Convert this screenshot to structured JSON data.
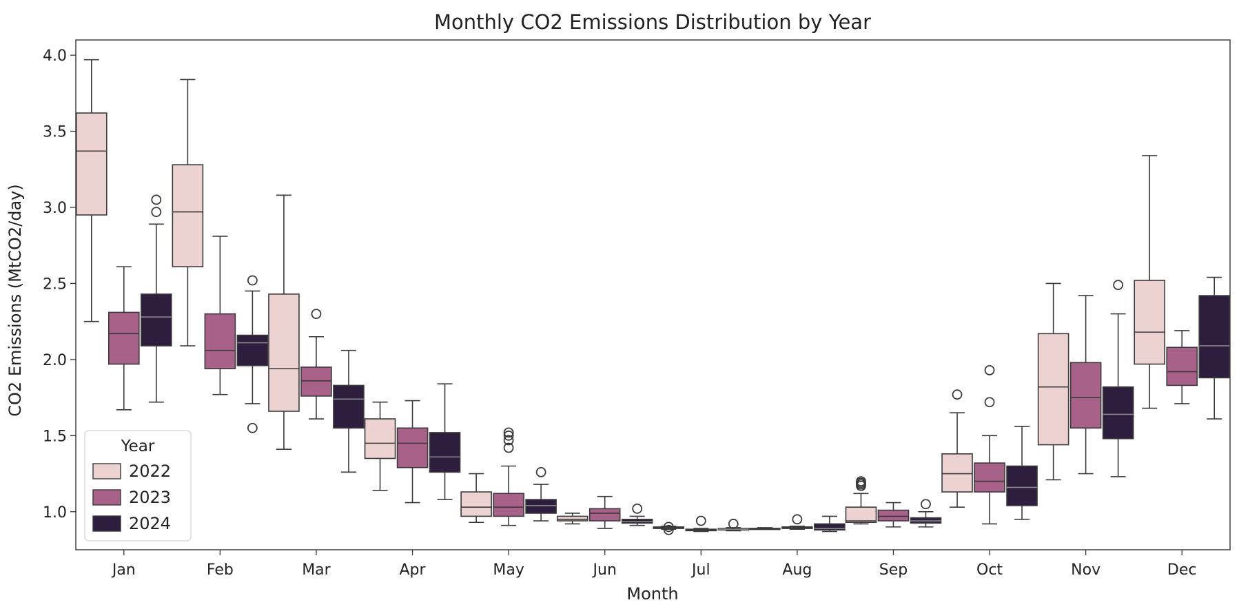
{
  "chart_data": {
    "type": "box",
    "title": "Monthly CO2 Emissions Distribution by Year",
    "xlabel": "Month",
    "ylabel": "CO2 Emissions (MtCO2/day)",
    "ylim": [
      0.75,
      4.1
    ],
    "yticks": [
      1.0,
      1.5,
      2.0,
      2.5,
      3.0,
      3.5,
      4.0
    ],
    "ytick_labels": [
      "1.0",
      "1.5",
      "2.0",
      "2.5",
      "3.0",
      "3.5",
      "4.0"
    ],
    "categories": [
      "Jan",
      "Feb",
      "Mar",
      "Apr",
      "May",
      "Jun",
      "Jul",
      "Aug",
      "Sep",
      "Oct",
      "Nov",
      "Dec"
    ],
    "legend": {
      "title": "Year",
      "position": "lower-left"
    },
    "series": [
      {
        "name": "2022",
        "color": "#ecd3d1",
        "boxes": [
          {
            "min": 2.25,
            "q1": 2.95,
            "median": 3.37,
            "q3": 3.62,
            "max": 3.97,
            "outliers": []
          },
          {
            "min": 2.09,
            "q1": 2.61,
            "median": 2.97,
            "q3": 3.28,
            "max": 3.84,
            "outliers": []
          },
          {
            "min": 1.41,
            "q1": 1.66,
            "median": 1.94,
            "q3": 2.43,
            "max": 3.08,
            "outliers": []
          },
          {
            "min": 1.14,
            "q1": 1.35,
            "median": 1.45,
            "q3": 1.61,
            "max": 1.72,
            "outliers": []
          },
          {
            "min": 0.93,
            "q1": 0.97,
            "median": 1.03,
            "q3": 1.13,
            "max": 1.25,
            "outliers": []
          },
          {
            "min": 0.92,
            "q1": 0.94,
            "median": 0.95,
            "q3": 0.97,
            "max": 0.99,
            "outliers": []
          },
          {
            "min": 0.885,
            "q1": 0.89,
            "median": 0.895,
            "q3": 0.9,
            "max": 0.905,
            "outliers": [
              0.88,
              0.9
            ]
          },
          {
            "min": 0.885,
            "q1": 0.885,
            "median": 0.89,
            "q3": 0.89,
            "max": 0.895,
            "outliers": []
          },
          {
            "min": 0.92,
            "q1": 0.93,
            "median": 0.94,
            "q3": 1.03,
            "max": 1.12,
            "outliers": [
              1.17,
              1.18,
              1.19,
              1.2
            ]
          },
          {
            "min": 1.03,
            "q1": 1.13,
            "median": 1.25,
            "q3": 1.38,
            "max": 1.65,
            "outliers": [
              1.77
            ]
          },
          {
            "min": 1.21,
            "q1": 1.44,
            "median": 1.82,
            "q3": 2.17,
            "max": 2.5,
            "outliers": []
          },
          {
            "min": 1.68,
            "q1": 1.97,
            "median": 2.18,
            "q3": 2.52,
            "max": 3.34,
            "outliers": []
          }
        ]
      },
      {
        "name": "2023",
        "color": "#a8628a",
        "boxes": [
          {
            "min": 1.67,
            "q1": 1.97,
            "median": 2.17,
            "q3": 2.31,
            "max": 2.61,
            "outliers": []
          },
          {
            "min": 1.77,
            "q1": 1.94,
            "median": 2.06,
            "q3": 2.3,
            "max": 2.81,
            "outliers": []
          },
          {
            "min": 1.61,
            "q1": 1.76,
            "median": 1.86,
            "q3": 1.95,
            "max": 2.15,
            "outliers": [
              2.3
            ]
          },
          {
            "min": 1.06,
            "q1": 1.29,
            "median": 1.45,
            "q3": 1.55,
            "max": 1.73,
            "outliers": []
          },
          {
            "min": 0.91,
            "q1": 0.97,
            "median": 1.03,
            "q3": 1.12,
            "max": 1.3,
            "outliers": [
              1.42,
              1.47,
              1.5,
              1.52
            ]
          },
          {
            "min": 0.89,
            "q1": 0.94,
            "median": 0.99,
            "q3": 1.02,
            "max": 1.1,
            "outliers": []
          },
          {
            "min": 0.87,
            "q1": 0.875,
            "median": 0.88,
            "q3": 0.885,
            "max": 0.89,
            "outliers": [
              0.94
            ]
          },
          {
            "min": 0.885,
            "q1": 0.89,
            "median": 0.895,
            "q3": 0.9,
            "max": 0.905,
            "outliers": [
              0.95
            ]
          },
          {
            "min": 0.9,
            "q1": 0.94,
            "median": 0.97,
            "q3": 1.01,
            "max": 1.06,
            "outliers": []
          },
          {
            "min": 0.92,
            "q1": 1.13,
            "median": 1.2,
            "q3": 1.32,
            "max": 1.5,
            "outliers": [
              1.72,
              1.93
            ]
          },
          {
            "min": 1.25,
            "q1": 1.55,
            "median": 1.75,
            "q3": 1.98,
            "max": 2.42,
            "outliers": []
          },
          {
            "min": 1.71,
            "q1": 1.83,
            "median": 1.92,
            "q3": 2.08,
            "max": 2.19,
            "outliers": []
          }
        ]
      },
      {
        "name": "2024",
        "color": "#2d1e3e",
        "boxes": [
          {
            "min": 1.72,
            "q1": 2.09,
            "median": 2.28,
            "q3": 2.43,
            "max": 2.89,
            "outliers": [
              2.97,
              3.05
            ]
          },
          {
            "min": 1.71,
            "q1": 1.96,
            "median": 2.11,
            "q3": 2.16,
            "max": 2.45,
            "outliers": [
              1.55,
              2.52
            ]
          },
          {
            "min": 1.26,
            "q1": 1.55,
            "median": 1.74,
            "q3": 1.83,
            "max": 2.06,
            "outliers": []
          },
          {
            "min": 1.08,
            "q1": 1.26,
            "median": 1.36,
            "q3": 1.52,
            "max": 1.84,
            "outliers": []
          },
          {
            "min": 0.94,
            "q1": 0.99,
            "median": 1.04,
            "q3": 1.08,
            "max": 1.18,
            "outliers": [
              1.26
            ]
          },
          {
            "min": 0.91,
            "q1": 0.925,
            "median": 0.935,
            "q3": 0.95,
            "max": 0.97,
            "outliers": [
              1.02
            ]
          },
          {
            "min": 0.875,
            "q1": 0.88,
            "median": 0.885,
            "q3": 0.89,
            "max": 0.895,
            "outliers": [
              0.92
            ]
          },
          {
            "min": 0.87,
            "q1": 0.88,
            "median": 0.89,
            "q3": 0.92,
            "max": 0.97,
            "outliers": []
          },
          {
            "min": 0.9,
            "q1": 0.925,
            "median": 0.94,
            "q3": 0.96,
            "max": 1.0,
            "outliers": [
              1.05
            ]
          },
          {
            "min": 0.95,
            "q1": 1.04,
            "median": 1.16,
            "q3": 1.3,
            "max": 1.56,
            "outliers": []
          },
          {
            "min": 1.23,
            "q1": 1.48,
            "median": 1.64,
            "q3": 1.82,
            "max": 2.3,
            "outliers": [
              2.49
            ]
          },
          {
            "min": 1.61,
            "q1": 1.88,
            "median": 2.09,
            "q3": 2.42,
            "max": 2.54,
            "outliers": []
          }
        ]
      }
    ]
  }
}
